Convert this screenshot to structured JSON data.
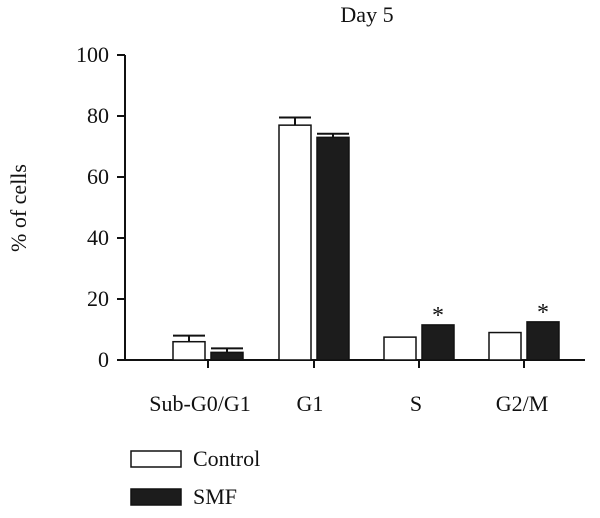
{
  "chart_data": {
    "type": "bar",
    "title": "Day 5",
    "ylabel": "% of cells",
    "xlabel": "",
    "ylim": [
      0,
      100
    ],
    "yticks": [
      0,
      20,
      40,
      60,
      80,
      100
    ],
    "categories": [
      "Sub-G0/G1",
      "G1",
      "S",
      "G2/M"
    ],
    "series": [
      {
        "name": "Control",
        "values": [
          6,
          77,
          7.5,
          9
        ],
        "errors": [
          2,
          2.5,
          null,
          null
        ],
        "color": "#ffffff"
      },
      {
        "name": "SMF",
        "values": [
          2.5,
          73,
          11.5,
          12.5
        ],
        "errors": [
          1.3,
          1.2,
          null,
          null
        ],
        "color": "#1c1c1c"
      }
    ],
    "significance": [
      "",
      "",
      "*",
      "*"
    ],
    "legend_position": "bottom-left",
    "grid": false
  }
}
